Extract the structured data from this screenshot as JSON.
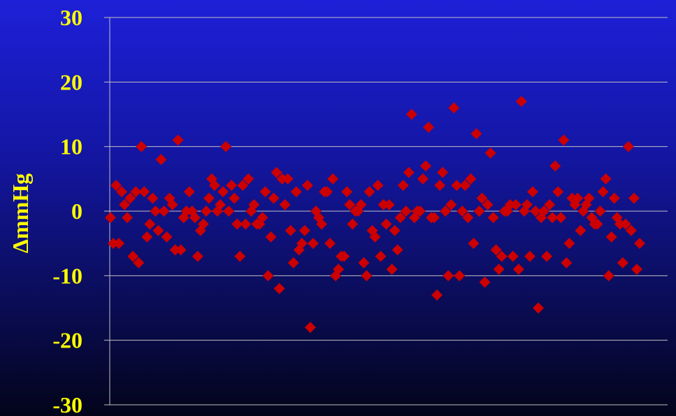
{
  "chart_data": {
    "type": "scatter",
    "title": "",
    "xlabel": "",
    "ylabel": "ΔmmHg",
    "ylim": [
      -30,
      30
    ],
    "yticks": [
      30,
      20,
      10,
      0,
      -10,
      -20,
      -30
    ],
    "grid": true,
    "legend": "none",
    "colors": {
      "marker": "#cc0000",
      "axis": "#c0c0c0",
      "text": "#ffff00"
    },
    "series": [
      {
        "values": [
          -1,
          -5,
          4,
          -5,
          3,
          1,
          -1,
          2,
          -7,
          3,
          -8,
          10,
          3,
          -4,
          -2,
          2,
          0,
          -3,
          8,
          0,
          -4,
          2,
          1,
          -6,
          11,
          -6,
          -1,
          0,
          3,
          0,
          -1,
          -7,
          -3,
          -2,
          0,
          2,
          5,
          4,
          0,
          1,
          3,
          10,
          0,
          4,
          2,
          -2,
          -7,
          4,
          -2,
          5,
          0,
          1,
          -2,
          -2,
          -1,
          3,
          -10,
          -4,
          2,
          6,
          -12,
          5,
          1,
          5,
          -3,
          -8,
          3,
          -6,
          -5,
          -3,
          4,
          -18,
          -5,
          0,
          -1,
          -2,
          3,
          3,
          -5,
          5,
          -10,
          -9,
          -7,
          -7,
          3,
          1,
          -2,
          0,
          0,
          1,
          -8,
          -10,
          3,
          -3,
          -4,
          4,
          -7,
          1,
          -2,
          1,
          -9,
          -3,
          -6,
          -1,
          4,
          0,
          6,
          15,
          -1,
          0,
          0,
          5,
          7,
          13,
          -1,
          -1,
          -13,
          4,
          6,
          0,
          -10,
          1,
          16,
          4,
          -10,
          0,
          4,
          -1,
          5,
          -5,
          12,
          0,
          2,
          -11,
          1,
          9,
          -1,
          -6,
          -9,
          -7,
          0,
          0,
          1,
          -7,
          1,
          -9,
          17,
          0,
          1,
          -7,
          3,
          0,
          -15,
          -1,
          0,
          -7,
          1,
          -1,
          7,
          3,
          -1,
          11,
          -8,
          -5,
          2,
          1,
          2,
          -3,
          0,
          1,
          2,
          -1,
          -2,
          -2,
          0,
          3,
          5,
          -10,
          -4,
          2,
          -1,
          -2,
          -8,
          -2,
          10,
          -3,
          2,
          -9,
          -5
        ]
      }
    ]
  }
}
